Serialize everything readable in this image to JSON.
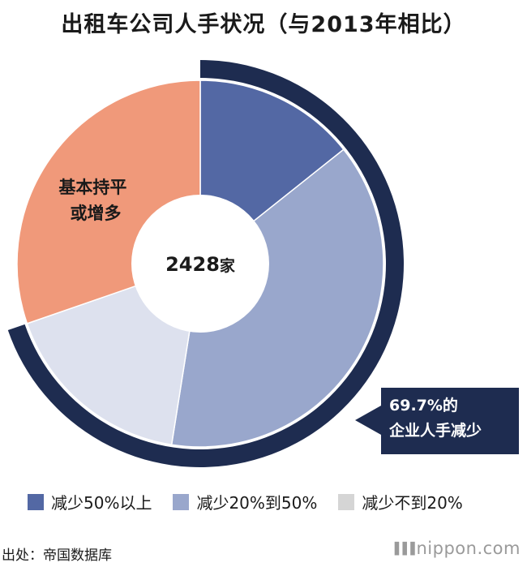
{
  "title": "出租车公司人手状况（与2013年相比）",
  "center_label": {
    "number": "2428",
    "unit": "家"
  },
  "slice_label": "基本持平或增多",
  "callout": {
    "line1": "69.7%的",
    "line2": "企业人手减少"
  },
  "source": "出处：帝国数据库",
  "brand": "nippon.com",
  "colors": {
    "dark_navy": "#1e2c50",
    "reduce_50_plus": "#5368a4",
    "reduce_20_50": "#99a7cc",
    "reduce_under_20": "#dde1ee",
    "flat_or_more": "#f0997a",
    "legend_under_20": "#d5d5d5"
  },
  "chart_data": {
    "type": "pie",
    "variant": "donut",
    "total": "2428家",
    "categories": [
      "减少50%以上",
      "减少20%到50%",
      "减少不到20%",
      "基本持平或增多"
    ],
    "values": [
      14.3,
      38.2,
      17.2,
      30.3
    ],
    "reduced_total_percent": 69.7,
    "legend": [
      {
        "label": "减少50%以上",
        "color": "#5368a4"
      },
      {
        "label": "减少20%到50%",
        "color": "#99a7cc"
      },
      {
        "label": "减少不到20%",
        "color": "#d5d5d5"
      }
    ],
    "legend_position": "bottom"
  }
}
